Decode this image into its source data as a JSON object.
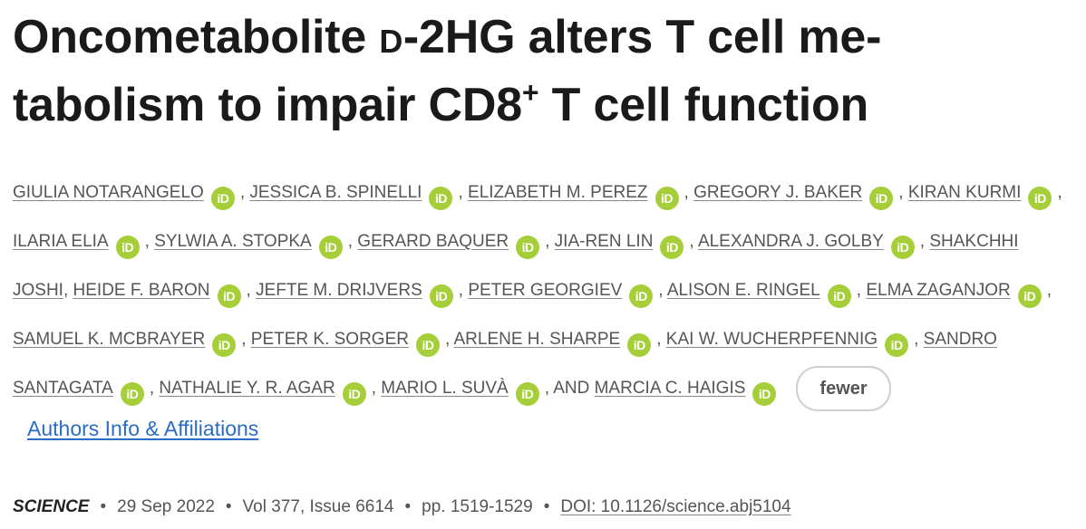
{
  "title": {
    "part1": "Oncometabolite ",
    "small_caps": "D",
    "part2": "-2HG alters T cell me-tabolism to impair CD8",
    "sup": "+",
    "part3": " T cell function"
  },
  "authors": [
    {
      "name": "GIULIA NOTARANGELO",
      "orcid": true
    },
    {
      "name": "JESSICA B. SPINELLI",
      "orcid": true
    },
    {
      "name": "ELIZABETH M. PEREZ",
      "orcid": true
    },
    {
      "name": "GREGORY J. BAKER",
      "orcid": true
    },
    {
      "name": "KIRAN KURMI",
      "orcid": true
    },
    {
      "name": "ILARIA ELIA",
      "orcid": true
    },
    {
      "name": "SYLWIA A. STOPKA",
      "orcid": true
    },
    {
      "name": "GERARD BAQUER",
      "orcid": true
    },
    {
      "name": "JIA-REN LIN",
      "orcid": true
    },
    {
      "name": "ALEXANDRA J. GOLBY",
      "orcid": true
    },
    {
      "name": "SHAKCHHI JOSHI",
      "orcid": false
    },
    {
      "name": "HEIDE F. BARON",
      "orcid": true
    },
    {
      "name": "JEFTE M. DRIJVERS",
      "orcid": true
    },
    {
      "name": "PETER GEORGIEV",
      "orcid": true
    },
    {
      "name": "ALISON E. RINGEL",
      "orcid": true
    },
    {
      "name": "ELMA ZAGANJOR",
      "orcid": true
    },
    {
      "name": "SAMUEL K. MCBRAYER",
      "orcid": true
    },
    {
      "name": "PETER K. SORGER",
      "orcid": true
    },
    {
      "name": "ARLENE H. SHARPE",
      "orcid": true
    },
    {
      "name": "KAI W. WUCHERPFENNIG",
      "orcid": true
    },
    {
      "name": "SANDRO SANTAGATA",
      "orcid": true
    },
    {
      "name": "NATHALIE Y. R. AGAR",
      "orcid": true
    },
    {
      "name": "MARIO L. SUVÀ",
      "orcid": true
    },
    {
      "name": "MARCIA C. HAIGIS",
      "orcid": true
    }
  ],
  "orcid_label": "iD",
  "and_word": "AND",
  "fewer_button": "fewer",
  "affiliations_link": "Authors Info & Affiliations",
  "meta": {
    "journal": "SCIENCE",
    "date": "29 Sep 2022",
    "volume": "Vol 377, Issue 6614",
    "pages": "pp. 1519-1529",
    "doi": "DOI: 10.1126/science.abj5104",
    "separator": "•"
  },
  "colors": {
    "orcid_green": "#a6ce39",
    "link_blue": "#2b6cc4",
    "text_gray": "#555555"
  }
}
